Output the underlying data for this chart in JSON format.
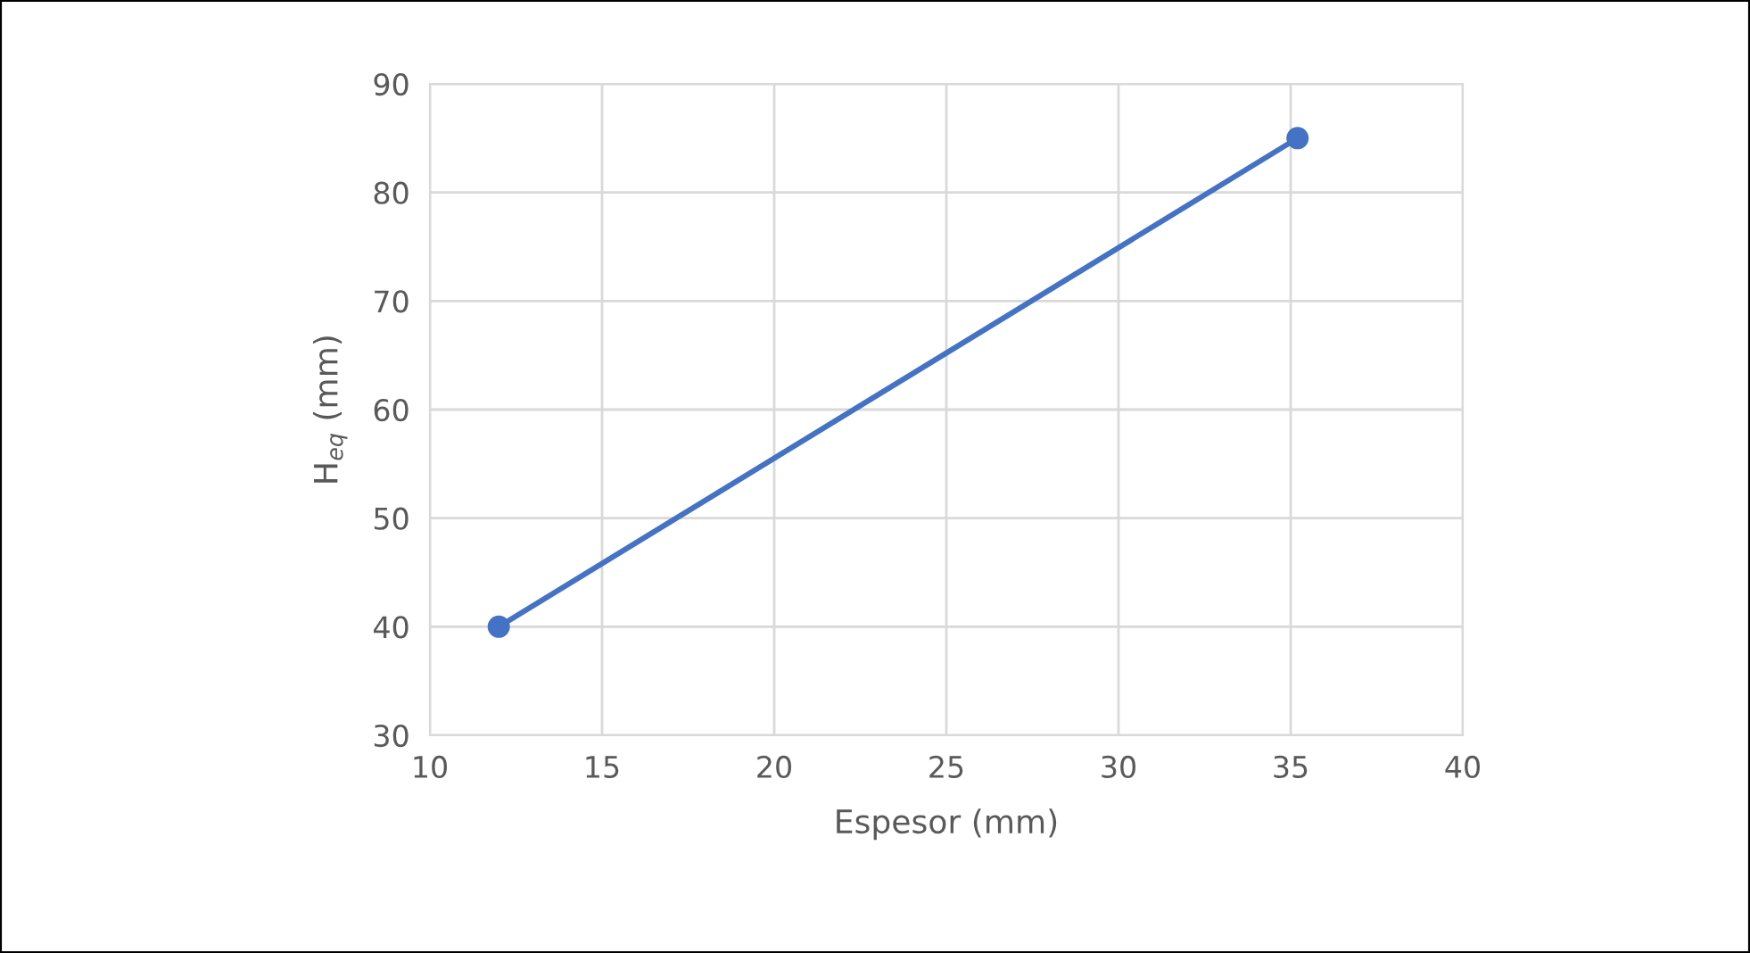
{
  "chart_data": {
    "type": "line",
    "xlabel": "Espesor (mm)",
    "ylabel": "H$_{eq}$ (mm)",
    "x": [
      12,
      35.2
    ],
    "series": [
      {
        "color": "#4472c4",
        "values": [
          40,
          85
        ]
      }
    ],
    "xlim": [
      10,
      40
    ],
    "xticks": [
      10,
      15,
      20,
      25,
      30,
      35,
      40
    ],
    "ylim": [
      30,
      90
    ],
    "yticks": [
      30,
      40,
      50,
      60,
      70,
      80,
      90
    ],
    "grid": true,
    "marker": "circle",
    "line_style": "solid"
  }
}
